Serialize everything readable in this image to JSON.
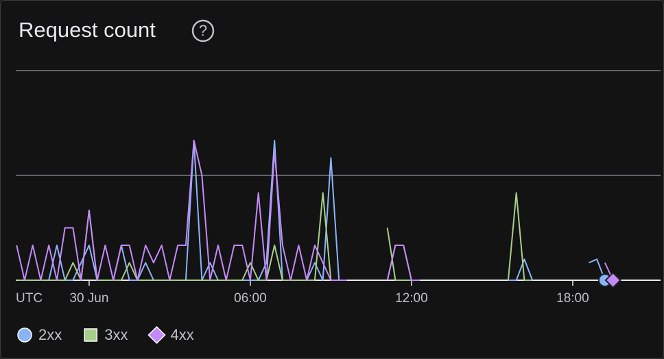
{
  "chart_data": {
    "type": "line",
    "title": "Request count",
    "help_icon": "?",
    "x_axis_label": "UTC",
    "x": [
      -2.7,
      -2.4,
      -2.1,
      -1.8,
      -1.5,
      -1.2,
      -0.9,
      -0.6,
      -0.3,
      0,
      0.3,
      0.6,
      0.9,
      1.2,
      1.5,
      1.8,
      2.1,
      2.4,
      2.7,
      3,
      3.3,
      3.6,
      3.9,
      4.2,
      4.5,
      4.8,
      5.1,
      5.4,
      5.7,
      6,
      6.3,
      6.6,
      6.9,
      7.2,
      7.5,
      7.8,
      8.1,
      8.4,
      8.7,
      9,
      9.3,
      9.6,
      9.9,
      10.2,
      10.5,
      10.8,
      11.1,
      11.4,
      11.7,
      12,
      12.3,
      12.6,
      12.9,
      13.2,
      13.5,
      13.8,
      14.1,
      14.4,
      14.7,
      15,
      15.3,
      15.6,
      15.9,
      16.2,
      16.5,
      16.8,
      17.1,
      17.4,
      17.7,
      18,
      18.3,
      18.6,
      18.9,
      19.2,
      19.5,
      19.8,
      20.1,
      20.4,
      20.7,
      21
    ],
    "series": [
      {
        "name": "2xx",
        "color": "#8ab4f8",
        "marker": "circle",
        "values": [
          0,
          0,
          0,
          0,
          0,
          1,
          0,
          0,
          0.5,
          1,
          0,
          0,
          0,
          1,
          0,
          0,
          0.5,
          0,
          0,
          0,
          0,
          0,
          4,
          0,
          0.5,
          0,
          0,
          0,
          0,
          0,
          0,
          0.5,
          4,
          0,
          0,
          0,
          0,
          0.5,
          0,
          3.5,
          0,
          0,
          null,
          null,
          null,
          null,
          0,
          1,
          1,
          0,
          0,
          null,
          null,
          null,
          null,
          null,
          null,
          null,
          null,
          null,
          null,
          0,
          0,
          0.6,
          0,
          null,
          null,
          null,
          null,
          null,
          null,
          0.5,
          0.6,
          0,
          null,
          null,
          null,
          null,
          null,
          null
        ]
      },
      {
        "name": "3xx",
        "color": "#a8cf8a",
        "marker": "square",
        "values": [
          0,
          0,
          0,
          0,
          0,
          0,
          0,
          0.5,
          0,
          2,
          0,
          0,
          0,
          0,
          0.5,
          0,
          0,
          0,
          0,
          0,
          0,
          0,
          0,
          0,
          0,
          0,
          0,
          0,
          0,
          0.5,
          0,
          0,
          1,
          0,
          0,
          0,
          0,
          0,
          2.5,
          0,
          0,
          0,
          null,
          null,
          null,
          null,
          1.5,
          0,
          0,
          0,
          0,
          null,
          null,
          null,
          null,
          null,
          null,
          null,
          null,
          null,
          null,
          0,
          2.5,
          0,
          0,
          null,
          null,
          null,
          null,
          null,
          null,
          null,
          null,
          null,
          null,
          null,
          null,
          null,
          null,
          null
        ]
      },
      {
        "name": "4xx",
        "color": "#c58af9",
        "marker": "diamond",
        "values": [
          1,
          0,
          1,
          0,
          1,
          0,
          1.5,
          1.5,
          0,
          2,
          0,
          1,
          0,
          1,
          1,
          0,
          1,
          0.5,
          1,
          0,
          1,
          1,
          4,
          3,
          0,
          1,
          0,
          1,
          1,
          0,
          2.5,
          0,
          3.7,
          1,
          0,
          1,
          0,
          1,
          0.5,
          0,
          0,
          0,
          null,
          null,
          null,
          null,
          0,
          1,
          1,
          0,
          0,
          null,
          null,
          null,
          null,
          null,
          null,
          null,
          null,
          null,
          null,
          null,
          null,
          null,
          null,
          null,
          null,
          null,
          null,
          null,
          null,
          null,
          null,
          0.5,
          0,
          null,
          null,
          null,
          null,
          null
        ]
      }
    ],
    "xlim": [
      -2.73,
      21.27
    ],
    "xticks": [
      {
        "value": 0,
        "label": "30 Jun"
      },
      {
        "value": 6,
        "label": "06:00"
      },
      {
        "value": 12,
        "label": "12:00"
      },
      {
        "value": 18,
        "label": "18:00"
      }
    ],
    "ylim": [
      0,
      6
    ],
    "yticks": [
      0,
      3,
      6
    ],
    "grid": true
  }
}
